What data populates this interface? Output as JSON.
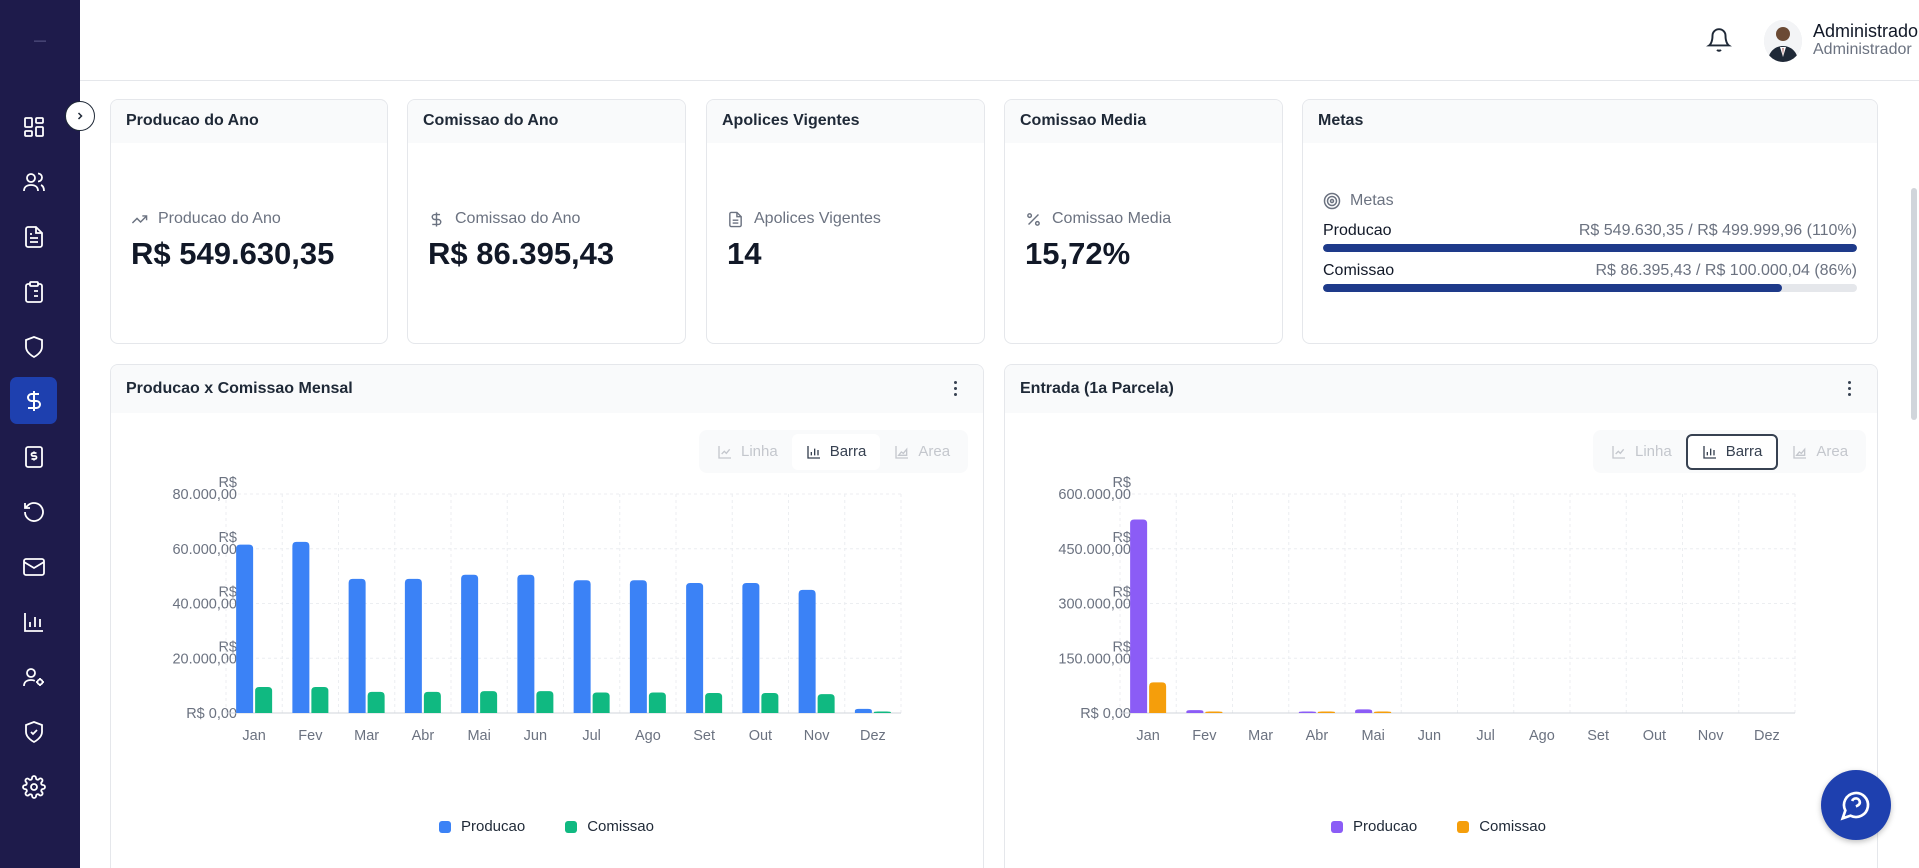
{
  "sidebar": {
    "logo_text": "—",
    "items": [
      {
        "icon": "dashboard-icon",
        "active": false
      },
      {
        "icon": "users-icon",
        "active": false
      },
      {
        "icon": "document-icon",
        "active": false
      },
      {
        "icon": "clipboard-icon",
        "active": false
      },
      {
        "icon": "shield-icon",
        "active": false
      },
      {
        "icon": "dollar-icon",
        "active": true
      },
      {
        "icon": "receipt-icon",
        "active": false
      },
      {
        "icon": "refresh-icon",
        "active": false
      },
      {
        "icon": "mail-icon",
        "active": false
      },
      {
        "icon": "bar-chart-icon",
        "active": false
      },
      {
        "icon": "user-cog-icon",
        "active": false
      },
      {
        "icon": "shield-check-icon",
        "active": false
      },
      {
        "icon": "gear-icon",
        "active": false
      }
    ]
  },
  "header": {
    "user_name": "Administrador",
    "user_role": "Administrador"
  },
  "cards": {
    "producao": {
      "title": "Producao do Ano",
      "label": "Producao do Ano",
      "value": "R$ 549.630,35"
    },
    "comissao": {
      "title": "Comissao do Ano",
      "label": "Comissao do Ano",
      "value": "R$ 86.395,43"
    },
    "apolices": {
      "title": "Apolices Vigentes",
      "label": "Apolices Vigentes",
      "value": "14"
    },
    "media": {
      "title": "Comissao Media",
      "label": "Comissao Media",
      "value": "15,72%"
    },
    "metas": {
      "title": "Metas",
      "label": "Metas",
      "rows": [
        {
          "name": "Producao",
          "value": "R$ 549.630,35 / R$ 499.999,96 (110%)",
          "progress": 1.0
        },
        {
          "name": "Comissao",
          "value": "R$ 86.395,43 / R$ 100.000,04 (86%)",
          "progress": 0.86
        }
      ]
    }
  },
  "toggle_labels": {
    "linha": "Linha",
    "barra": "Barra",
    "area": "Area"
  },
  "colors": {
    "accent": "#1e40af",
    "producao_left": "#3b82f6",
    "comissao_left": "#10b981",
    "producao_right": "#8b5cf6",
    "comissao_right": "#f59e0b"
  },
  "chart_data": [
    {
      "type": "bar",
      "title": "Producao x Comissao Mensal",
      "categories": [
        "Jan",
        "Fev",
        "Mar",
        "Abr",
        "Mai",
        "Jun",
        "Jul",
        "Ago",
        "Set",
        "Out",
        "Nov",
        "Dez"
      ],
      "series": [
        {
          "name": "Producao",
          "values": [
            61500,
            62500,
            49000,
            49000,
            50500,
            50500,
            48500,
            48500,
            47500,
            47500,
            45000,
            1500
          ]
        },
        {
          "name": "Comissao",
          "values": [
            9500,
            9500,
            7700,
            7700,
            8000,
            8000,
            7500,
            7500,
            7300,
            7300,
            6900,
            300
          ]
        }
      ],
      "y_ticks": [
        "R$ 0,00",
        "R$ 20.000,00",
        "R$ 40.000,00",
        "R$ 60.000,00",
        "R$ 80.000,00"
      ],
      "ylim": [
        0,
        80000
      ],
      "legend": "bottom",
      "grid": true
    },
    {
      "type": "bar",
      "title": "Entrada (1a Parcela)",
      "categories": [
        "Jan",
        "Fev",
        "Mar",
        "Abr",
        "Mai",
        "Jun",
        "Jul",
        "Ago",
        "Set",
        "Out",
        "Nov",
        "Dez"
      ],
      "series": [
        {
          "name": "Producao",
          "values": [
            530000,
            8000,
            0,
            4000,
            10000,
            0,
            0,
            0,
            0,
            0,
            0,
            0
          ]
        },
        {
          "name": "Comissao",
          "values": [
            84000,
            1500,
            0,
            700,
            1500,
            0,
            0,
            0,
            0,
            0,
            0,
            0
          ]
        }
      ],
      "y_ticks": [
        "R$ 0,00",
        "R$ 150.000,00",
        "R$ 300.000,00",
        "R$ 450.000,00",
        "R$ 600.000,00"
      ],
      "ylim": [
        0,
        600000
      ],
      "legend": "bottom",
      "grid": true
    }
  ]
}
